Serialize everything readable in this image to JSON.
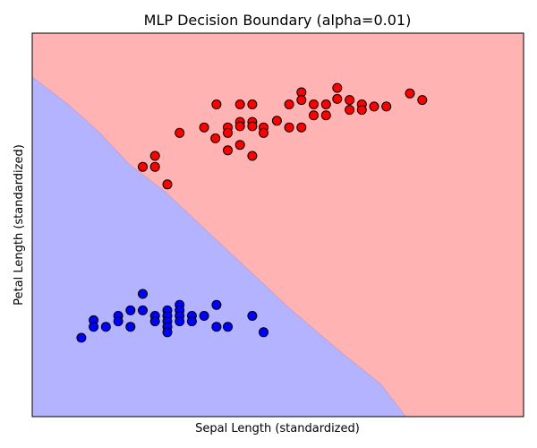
{
  "chart_data": {
    "type": "scatter",
    "title": "MLP Decision Boundary (alpha=0.01)",
    "xlabel": "Sepal Length (standardized)",
    "ylabel": "Petal Length (standardized)",
    "show_ticks": false,
    "grid": false,
    "xlim": [
      -2.3,
      2.5
    ],
    "ylim": [
      -1.9,
      1.6
    ],
    "regions": [
      {
        "class": "blue-class",
        "color": "#b3b3ff",
        "side": "lower-left"
      },
      {
        "class": "red-class",
        "color": "#ffb3b3",
        "side": "upper-right"
      }
    ],
    "boundary": [
      [
        -2.3,
        1.2
      ],
      [
        -1.95,
        0.95
      ],
      [
        -1.65,
        0.7
      ],
      [
        -1.35,
        0.4
      ],
      [
        -1.0,
        0.15
      ],
      [
        -0.6,
        -0.2
      ],
      [
        -0.2,
        -0.55
      ],
      [
        0.2,
        -0.9
      ],
      [
        0.7,
        -1.3
      ],
      [
        1.1,
        -1.6
      ],
      [
        1.35,
        -1.9
      ]
    ],
    "series": [
      {
        "color": "#ff0000",
        "points": [
          [
            -0.5,
            0.95
          ],
          [
            -0.27,
            0.95
          ],
          [
            -0.15,
            0.95
          ],
          [
            0.21,
            0.95
          ],
          [
            0.33,
            1.06
          ],
          [
            0.33,
            0.99
          ],
          [
            0.45,
            0.95
          ],
          [
            0.68,
            1.1
          ],
          [
            0.68,
            1.0
          ],
          [
            0.8,
            0.99
          ],
          [
            0.92,
            0.95
          ],
          [
            1.04,
            0.93
          ],
          [
            1.16,
            0.93
          ],
          [
            1.39,
            1.05
          ],
          [
            1.51,
            0.99
          ],
          [
            0.57,
            0.95
          ],
          [
            -0.62,
            0.74
          ],
          [
            -0.39,
            0.74
          ],
          [
            -0.39,
            0.69
          ],
          [
            -0.27,
            0.79
          ],
          [
            -0.27,
            0.75
          ],
          [
            -0.15,
            0.79
          ],
          [
            -0.15,
            0.75
          ],
          [
            -0.04,
            0.74
          ],
          [
            -0.04,
            0.69
          ],
          [
            0.09,
            0.8
          ],
          [
            0.21,
            0.74
          ],
          [
            0.33,
            0.74
          ],
          [
            0.45,
            0.85
          ],
          [
            0.57,
            0.85
          ],
          [
            0.8,
            0.9
          ],
          [
            0.92,
            0.9
          ],
          [
            -0.86,
            0.69
          ],
          [
            -0.39,
            0.53
          ],
          [
            -0.27,
            0.58
          ],
          [
            -0.15,
            0.48
          ],
          [
            -0.51,
            0.64
          ],
          [
            -1.1,
            0.48
          ],
          [
            -1.1,
            0.38
          ],
          [
            -1.22,
            0.38
          ],
          [
            -0.98,
            0.22
          ]
        ],
        "values": []
      },
      {
        "color": "#0000ff",
        "points": [
          [
            -1.7,
            -1.02
          ],
          [
            -1.7,
            -1.08
          ],
          [
            -1.58,
            -1.08
          ],
          [
            -1.46,
            -0.98
          ],
          [
            -1.46,
            -1.03
          ],
          [
            -1.34,
            -0.93
          ],
          [
            -1.34,
            -1.08
          ],
          [
            -1.22,
            -0.93
          ],
          [
            -1.22,
            -0.78
          ],
          [
            -1.1,
            -0.98
          ],
          [
            -1.1,
            -1.03
          ],
          [
            -0.98,
            -0.93
          ],
          [
            -0.98,
            -0.98
          ],
          [
            -0.98,
            -1.03
          ],
          [
            -0.98,
            -1.08
          ],
          [
            -0.98,
            -1.13
          ],
          [
            -0.86,
            -0.88
          ],
          [
            -0.86,
            -0.93
          ],
          [
            -0.86,
            -0.98
          ],
          [
            -0.86,
            -1.03
          ],
          [
            -0.74,
            -0.98
          ],
          [
            -0.74,
            -1.03
          ],
          [
            -0.62,
            -0.98
          ],
          [
            -0.5,
            -0.88
          ],
          [
            -0.5,
            -1.08
          ],
          [
            -0.39,
            -1.08
          ],
          [
            -0.15,
            -0.98
          ],
          [
            -0.04,
            -1.13
          ],
          [
            -1.82,
            -1.18
          ]
        ],
        "values": []
      }
    ]
  }
}
